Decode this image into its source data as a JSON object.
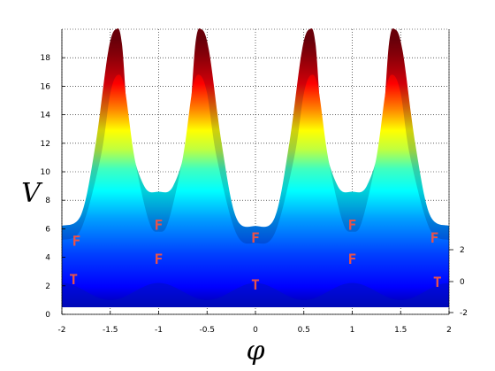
{
  "chart_data": {
    "type": "surface",
    "xlabel": "φ",
    "ylabel": "V",
    "xlim": [
      -2,
      2
    ],
    "ylim": [
      0,
      20
    ],
    "zlim": [
      -2,
      2
    ],
    "grid": true,
    "colormap": "jet",
    "x_ticks": [
      "-2",
      "-1.5",
      "-1",
      "-0.5",
      "0",
      "0.5",
      "1",
      "1.5",
      "2"
    ],
    "y_ticks": [
      "0",
      "2",
      "4",
      "6",
      "8",
      "10",
      "12",
      "14",
      "16",
      "18"
    ],
    "z_ticks": [
      "-2",
      "0",
      "2"
    ],
    "front_profile": {
      "x": [
        -2,
        -1.8,
        -1.6,
        -1.5,
        -1.42,
        -1.35,
        -1.25,
        -1.1,
        -1,
        -0.9,
        -0.75,
        -0.65,
        -0.58,
        -0.5,
        -0.4,
        -0.2,
        0,
        0.2,
        0.4,
        0.5,
        0.58,
        0.65,
        0.75,
        0.9,
        1,
        1.1,
        1.25,
        1.35,
        1.42,
        1.5,
        1.6,
        1.8,
        2
      ],
      "y": [
        5.2,
        6.0,
        11.0,
        15.5,
        16.8,
        15.8,
        11.0,
        6.5,
        5.8,
        6.5,
        11.0,
        15.8,
        16.8,
        15.5,
        11.0,
        5.7,
        5.0,
        5.7,
        11.0,
        15.5,
        16.8,
        15.8,
        11.0,
        6.5,
        5.8,
        6.5,
        11.0,
        15.8,
        16.8,
        15.5,
        11.0,
        6.0,
        5.2
      ]
    },
    "back_profile": {
      "x": [
        -2,
        -1.8,
        -1.65,
        -1.52,
        -1.44,
        -1.38,
        -1.3,
        -1.15,
        -1,
        -0.85,
        -0.7,
        -0.62,
        -0.56,
        -0.48,
        -0.35,
        -0.2,
        0,
        0.2,
        0.35,
        0.48,
        0.56,
        0.62,
        0.7,
        0.85,
        1,
        1.15,
        1.3,
        1.38,
        1.44,
        1.52,
        1.65,
        1.8,
        2
      ],
      "y": [
        6.2,
        7.0,
        12.0,
        18.5,
        20.0,
        19.0,
        12.5,
        9.0,
        8.6,
        9.0,
        12.5,
        19.0,
        20.0,
        18.5,
        12.0,
        6.8,
        6.2,
        6.8,
        12.0,
        18.5,
        20.0,
        19.0,
        12.5,
        9.0,
        8.6,
        9.0,
        12.5,
        19.0,
        20.0,
        18.5,
        12.0,
        7.0,
        6.2
      ]
    },
    "markers": [
      {
        "label": "F",
        "x": -1.85,
        "y": 5.2
      },
      {
        "label": "T",
        "x": -1.88,
        "y": 2.5
      },
      {
        "label": "F",
        "x": -1.0,
        "y": 6.3
      },
      {
        "label": "F",
        "x": -1.0,
        "y": 3.9
      },
      {
        "label": "F",
        "x": 0.0,
        "y": 5.4
      },
      {
        "label": "T",
        "x": 0.0,
        "y": 2.1
      },
      {
        "label": "F",
        "x": 1.0,
        "y": 6.3
      },
      {
        "label": "F",
        "x": 1.0,
        "y": 3.9
      },
      {
        "label": "F",
        "x": 1.85,
        "y": 5.4
      },
      {
        "label": "T",
        "x": 1.88,
        "y": 2.3
      }
    ],
    "marker_color": "#e8524a"
  }
}
